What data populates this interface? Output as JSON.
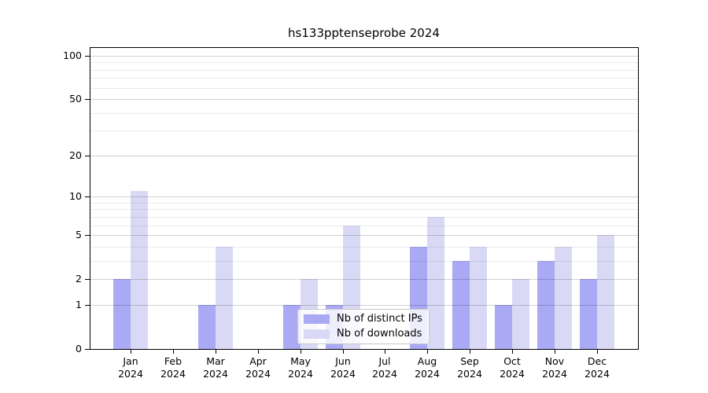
{
  "chart_data": {
    "type": "bar",
    "title": "hs133pptenseprobe 2024",
    "x_tick_year": "2024",
    "categories": [
      "Jan",
      "Feb",
      "Mar",
      "Apr",
      "May",
      "Jun",
      "Jul",
      "Aug",
      "Sep",
      "Oct",
      "Nov",
      "Dec"
    ],
    "series": [
      {
        "name": "Nb of distinct IPs",
        "color": "#a9a9f4",
        "values": [
          2,
          0,
          1,
          0,
          1,
          1,
          0,
          4,
          3,
          1,
          3,
          2
        ]
      },
      {
        "name": "Nb of downloads",
        "color": "#d9d9f6",
        "values": [
          11,
          0,
          4,
          0,
          2,
          6,
          0,
          7,
          4,
          2,
          4,
          5
        ]
      }
    ],
    "y_axis": {
      "scale": "log1p",
      "major_ticks": [
        0,
        1,
        2,
        5,
        10,
        20,
        50,
        100
      ],
      "minor_ticks": [
        3,
        4,
        6,
        7,
        8,
        9,
        30,
        40,
        60,
        70,
        80,
        90
      ],
      "ylim": [
        0,
        120
      ]
    },
    "legend": {
      "entries": [
        "Nb of distinct IPs",
        "Nb of downloads"
      ],
      "position": "lower center"
    },
    "grid": "on, drawn above bars",
    "colors": {
      "spine": "#000000",
      "grid_major": "#d1d1d1",
      "grid_minor": "#ebebeb",
      "legend_border": "#c9c9c9",
      "background": "#ffffff"
    }
  }
}
